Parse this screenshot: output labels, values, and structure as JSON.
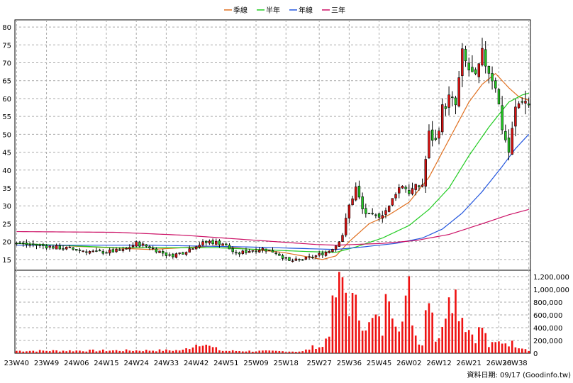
{
  "legend": {
    "items": [
      {
        "label": "季線",
        "color": "#e07020"
      },
      {
        "label": "半年",
        "color": "#22cc22"
      },
      {
        "label": "年線",
        "color": "#2255dd"
      },
      {
        "label": "三年",
        "color": "#cc1166"
      }
    ]
  },
  "footer": {
    "text": "資料日期: 09/17 (Goodinfo.tw)"
  },
  "chart_data": [
    {
      "type": "candlestick",
      "title": "",
      "grid": true,
      "ylim": [
        12,
        82
      ],
      "yticks": [
        15,
        20,
        25,
        30,
        35,
        40,
        45,
        50,
        55,
        60,
        65,
        70,
        75,
        80
      ],
      "x_tick_labels": [
        "23W40",
        "23W49",
        "24W06",
        "24W15",
        "24W24",
        "24W33",
        "24W42",
        "24W51",
        "25W09",
        "25W18",
        "25W27",
        "25W36",
        "25W45",
        "26W02",
        "26W12",
        "26W21",
        "26W30",
        "26W38"
      ],
      "weeks": 155,
      "price_anchors": [
        [
          0,
          19.5
        ],
        [
          8,
          18.8
        ],
        [
          16,
          18.0
        ],
        [
          24,
          17.0
        ],
        [
          32,
          17.5
        ],
        [
          36,
          19.5
        ],
        [
          40,
          18.5
        ],
        [
          46,
          16.0
        ],
        [
          50,
          17.0
        ],
        [
          54,
          19.0
        ],
        [
          58,
          20.0
        ],
        [
          62,
          19.5
        ],
        [
          66,
          16.5
        ],
        [
          70,
          17.5
        ],
        [
          74,
          18.0
        ],
        [
          78,
          17.0
        ],
        [
          82,
          14.5
        ],
        [
          86,
          15.0
        ],
        [
          90,
          16.0
        ],
        [
          94,
          17.5
        ],
        [
          96,
          19.0
        ],
        [
          98,
          22.0
        ],
        [
          100,
          30.0
        ],
        [
          102,
          35.0
        ],
        [
          104,
          29.0
        ],
        [
          106,
          27.0
        ],
        [
          108,
          27.0
        ],
        [
          110,
          28.0
        ],
        [
          112,
          29.5
        ],
        [
          114,
          34.0
        ],
        [
          116,
          36.0
        ],
        [
          118,
          34.0
        ],
        [
          120,
          35.0
        ],
        [
          122,
          36.0
        ],
        [
          124,
          50.0
        ],
        [
          126,
          48.0
        ],
        [
          128,
          57.0
        ],
        [
          130,
          60.0
        ],
        [
          132,
          58.0
        ],
        [
          134,
          72.0
        ],
        [
          136,
          68.0
        ],
        [
          138,
          65.0
        ],
        [
          140,
          72.0
        ],
        [
          142,
          68.0
        ],
        [
          144,
          64.0
        ],
        [
          146,
          52.0
        ],
        [
          148,
          45.0
        ],
        [
          150,
          57.0
        ],
        [
          152,
          60.0
        ],
        [
          154,
          58.5
        ]
      ],
      "moving_averages": [
        {
          "name": "季線",
          "color": "#e07020",
          "anchors": [
            [
              0,
              19.5
            ],
            [
              20,
              18.6
            ],
            [
              40,
              17.8
            ],
            [
              60,
              18.8
            ],
            [
              80,
              17.0
            ],
            [
              92,
              15.0
            ],
            [
              96,
              16.0
            ],
            [
              100,
              20.0
            ],
            [
              106,
              25.0
            ],
            [
              112,
              27.5
            ],
            [
              118,
              31.0
            ],
            [
              124,
              38.0
            ],
            [
              128,
              45.0
            ],
            [
              132,
              52.0
            ],
            [
              136,
              59.0
            ],
            [
              140,
              64.0
            ],
            [
              144,
              67.0
            ],
            [
              148,
              63.0
            ],
            [
              151,
              60.5
            ],
            [
              154,
              59.5
            ]
          ]
        },
        {
          "name": "半年",
          "color": "#22cc22",
          "anchors": [
            [
              0,
              19.5
            ],
            [
              30,
              18.3
            ],
            [
              60,
              18.3
            ],
            [
              88,
              17.2
            ],
            [
              96,
              17.0
            ],
            [
              102,
              18.5
            ],
            [
              110,
              21.0
            ],
            [
              118,
              24.5
            ],
            [
              124,
              29.0
            ],
            [
              130,
              35.0
            ],
            [
              136,
              44.0
            ],
            [
              142,
              52.0
            ],
            [
              148,
              59.0
            ],
            [
              152,
              61.0
            ],
            [
              154,
              61.5
            ]
          ]
        },
        {
          "name": "年線",
          "color": "#2255dd",
          "anchors": [
            [
              0,
              19.0
            ],
            [
              40,
              19.0
            ],
            [
              70,
              18.5
            ],
            [
              96,
              17.8
            ],
            [
              104,
              18.5
            ],
            [
              114,
              19.5
            ],
            [
              122,
              21.0
            ],
            [
              128,
              23.5
            ],
            [
              134,
              28.0
            ],
            [
              140,
              34.0
            ],
            [
              146,
              41.0
            ],
            [
              150,
              46.0
            ],
            [
              154,
              50.0
            ]
          ]
        },
        {
          "name": "三年",
          "color": "#cc1166",
          "anchors": [
            [
              0,
              22.8
            ],
            [
              30,
              22.6
            ],
            [
              50,
              21.8
            ],
            [
              70,
              20.5
            ],
            [
              90,
              19.2
            ],
            [
              96,
              19.0
            ],
            [
              110,
              19.5
            ],
            [
              120,
              20.3
            ],
            [
              130,
              22.0
            ],
            [
              140,
              25.0
            ],
            [
              148,
              27.5
            ],
            [
              154,
              29.0
            ]
          ]
        }
      ]
    },
    {
      "type": "bar",
      "title": "",
      "ylim": [
        0,
        1300000
      ],
      "yticks": [
        0,
        200000,
        400000,
        600000,
        800000,
        1000000,
        1200000
      ],
      "ytick_labels": [
        "0",
        "200,000",
        "400,000",
        "600,000",
        "800,000",
        "1,000,000",
        "1,200,000"
      ],
      "volume_anchors": [
        [
          0,
          40000
        ],
        [
          50,
          50000
        ],
        [
          54,
          150000
        ],
        [
          56,
          200000
        ],
        [
          58,
          110000
        ],
        [
          62,
          40000
        ],
        [
          86,
          30000
        ],
        [
          90,
          120000
        ],
        [
          92,
          100000
        ],
        [
          94,
          420000
        ],
        [
          96,
          980000
        ],
        [
          98,
          1200000
        ],
        [
          100,
          900000
        ],
        [
          102,
          750000
        ],
        [
          104,
          620000
        ],
        [
          106,
          450000
        ],
        [
          108,
          580000
        ],
        [
          110,
          380000
        ],
        [
          112,
          1200000
        ],
        [
          114,
          680000
        ],
        [
          116,
          520000
        ],
        [
          118,
          1020000
        ],
        [
          120,
          300000
        ],
        [
          122,
          160000
        ],
        [
          124,
          1310000
        ],
        [
          126,
          250000
        ],
        [
          128,
          360000
        ],
        [
          130,
          1300000
        ],
        [
          132,
          980000
        ],
        [
          134,
          650000
        ],
        [
          136,
          400000
        ],
        [
          138,
          280000
        ],
        [
          140,
          450000
        ],
        [
          142,
          120000
        ],
        [
          146,
          200000
        ],
        [
          150,
          150000
        ],
        [
          154,
          60000
        ]
      ]
    }
  ]
}
